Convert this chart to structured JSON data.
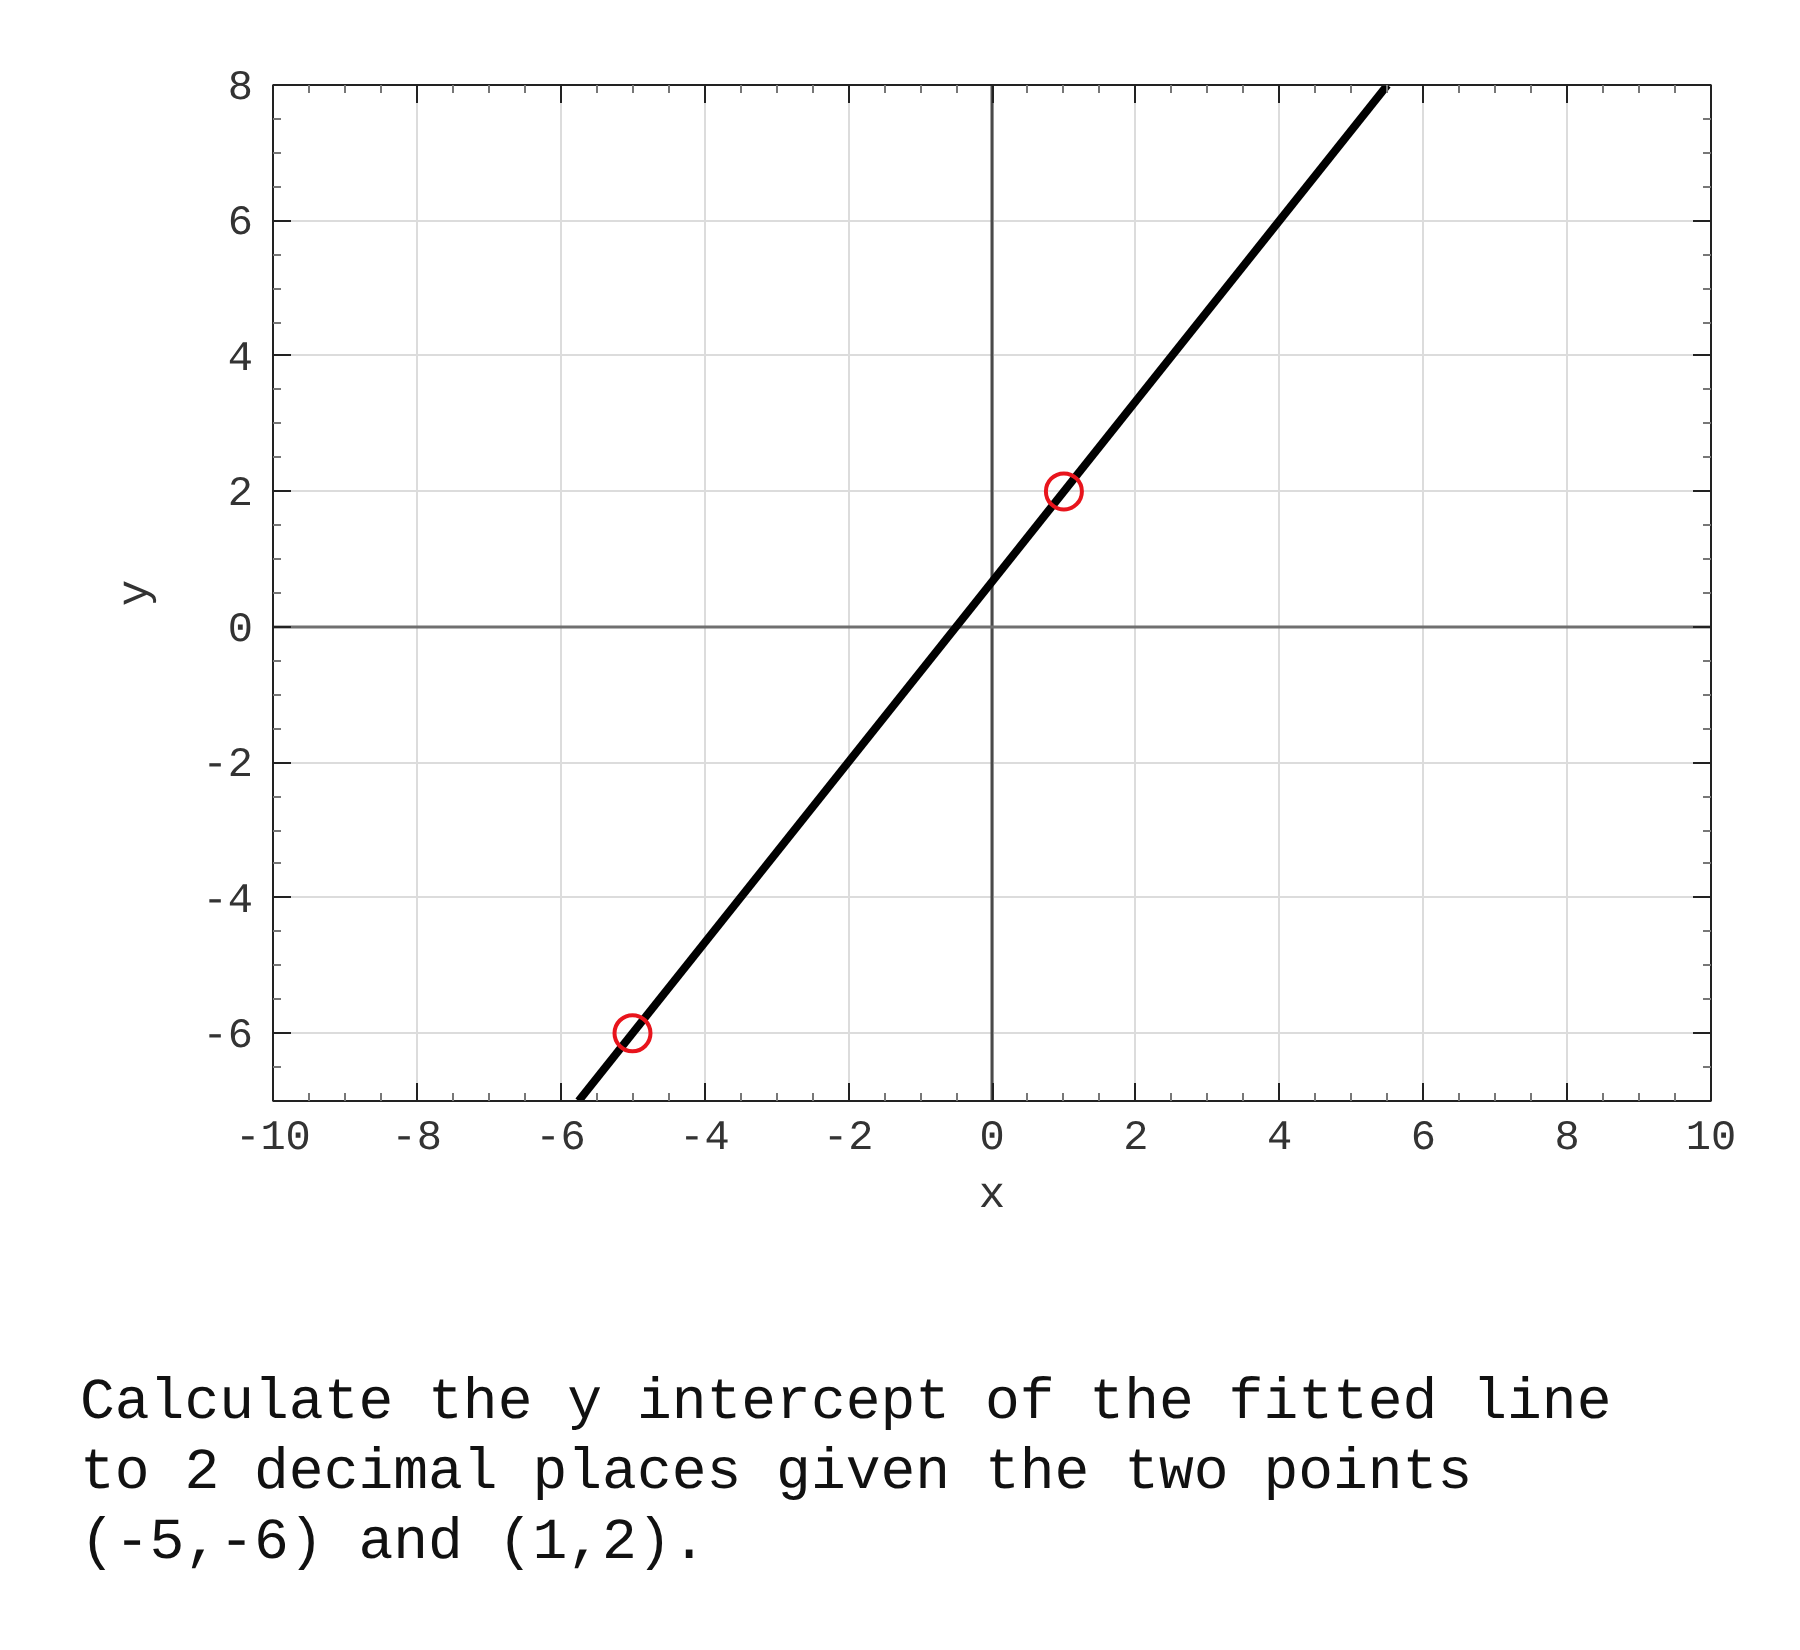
{
  "chart_data": {
    "type": "line",
    "xlabel": "x",
    "ylabel": "y",
    "xlim": [
      -10,
      10
    ],
    "ylim": [
      -7,
      8
    ],
    "xticks": [
      -10,
      {
        "value": -9.5,
        "label": null
      },
      {
        "value": -9,
        "label": null
      },
      {
        "value": -8.5,
        "label": null
      },
      -8,
      {
        "value": -7.5,
        "label": null
      },
      {
        "value": -7,
        "label": null
      },
      {
        "value": -6.5,
        "label": null
      },
      -6,
      {
        "value": -5.5,
        "label": null
      },
      {
        "value": -5,
        "label": null
      },
      {
        "value": -4.5,
        "label": null
      },
      -4,
      {
        "value": -3.5,
        "label": null
      },
      {
        "value": -3,
        "label": null
      },
      {
        "value": -2.5,
        "label": null
      },
      -2,
      {
        "value": -1.5,
        "label": null
      },
      {
        "value": -1,
        "label": null
      },
      {
        "value": -0.5,
        "label": null
      },
      0,
      {
        "value": 0.5,
        "label": null
      },
      {
        "value": 1,
        "label": null
      },
      {
        "value": 1.5,
        "label": null
      },
      2,
      {
        "value": 2.5,
        "label": null
      },
      {
        "value": 3,
        "label": null
      },
      {
        "value": 3.5,
        "label": null
      },
      4,
      {
        "value": 4.5,
        "label": null
      },
      {
        "value": 5,
        "label": null
      },
      {
        "value": 5.5,
        "label": null
      },
      6,
      {
        "value": 6.5,
        "label": null
      },
      {
        "value": 7,
        "label": null
      },
      {
        "value": 7.5,
        "label": null
      },
      8,
      {
        "value": 8.5,
        "label": null
      },
      {
        "value": 9,
        "label": null
      },
      {
        "value": 9.5,
        "label": null
      },
      10
    ],
    "yticks": [
      {
        "value": -6.5,
        "label": null
      },
      -6,
      {
        "value": -5.5,
        "label": null
      },
      {
        "value": -5,
        "label": null
      },
      {
        "value": -4.5,
        "label": null
      },
      -4,
      {
        "value": -3.5,
        "label": null
      },
      {
        "value": -3,
        "label": null
      },
      {
        "value": -2.5,
        "label": null
      },
      -2,
      {
        "value": -1.5,
        "label": null
      },
      {
        "value": -1,
        "label": null
      },
      {
        "value": -0.5,
        "label": null
      },
      0,
      {
        "value": 0.5,
        "label": null
      },
      {
        "value": 1,
        "label": null
      },
      {
        "value": 1.5,
        "label": null
      },
      2,
      {
        "value": 2.5,
        "label": null
      },
      {
        "value": 3,
        "label": null
      },
      {
        "value": 3.5,
        "label": null
      },
      4,
      {
        "value": 4.5,
        "label": null
      },
      {
        "value": 5,
        "label": null
      },
      {
        "value": 5.5,
        "label": null
      },
      6,
      {
        "value": 6.5,
        "label": null
      },
      {
        "value": 7,
        "label": null
      },
      {
        "value": 7.5,
        "label": null
      },
      8
    ],
    "grid": true,
    "series": [
      {
        "x": [
          -5.75,
          5.5
        ],
        "values": [
          -7,
          8
        ],
        "color": "#000000",
        "marker": "none",
        "line_style": "solid"
      },
      {
        "type": "scatter",
        "x": [
          -5,
          1
        ],
        "values": [
          -6,
          2
        ],
        "color": "#e8141c",
        "marker": "circle"
      }
    ],
    "ref_lines": [
      {
        "axis": "x",
        "value": 0,
        "color": "#4a4a4a"
      },
      {
        "axis": "y",
        "value": 0,
        "color": "#707070"
      }
    ],
    "annotations": [
      "Calculate the y intercept of the fitted line to 2 decimal places given the two points (-5,-6) and (1,2)."
    ]
  }
}
